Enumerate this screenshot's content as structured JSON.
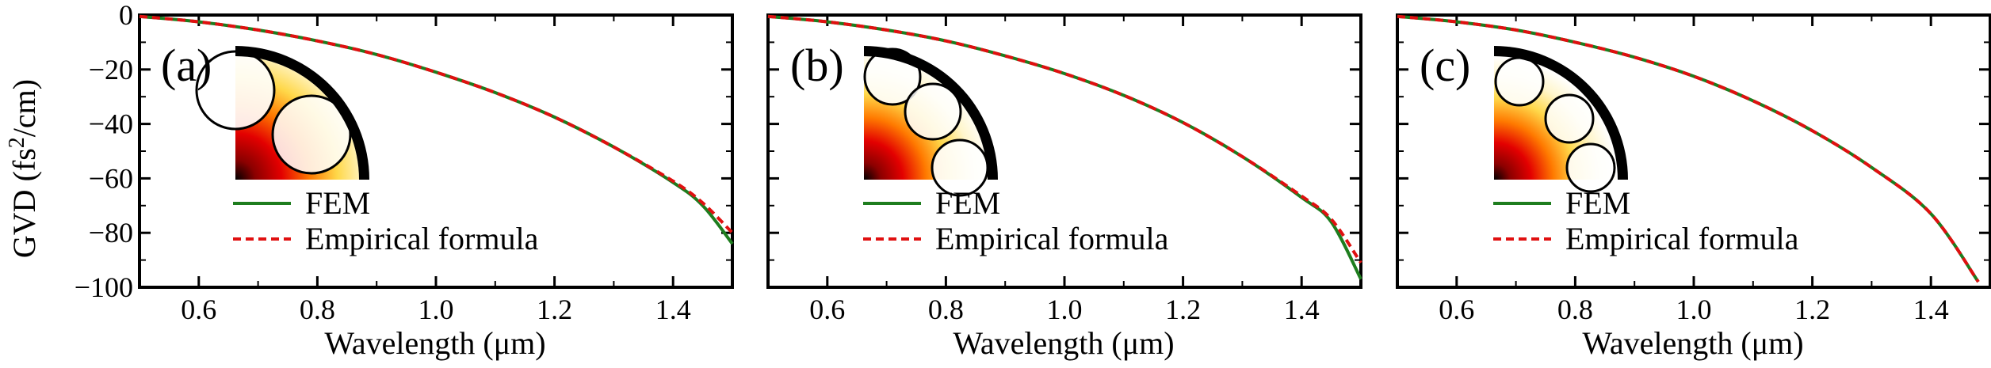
{
  "figure": {
    "ylabel_main": "GVD (fs",
    "ylabel_sup": "2",
    "ylabel_tail": "/cm)",
    "xlabel": "Wavelength (μm)"
  },
  "colors": {
    "fem": "#1e7d1e",
    "empirical": "#e01010",
    "frame": "#000000"
  },
  "chart_data": [
    {
      "type": "line",
      "panel_label": "(a)",
      "xlim": [
        0.5,
        1.5
      ],
      "ylim": [
        -100,
        0
      ],
      "xticks": [
        0.6,
        0.8,
        1.0,
        1.2,
        1.4
      ],
      "xtick_labels": [
        "0.6",
        "0.8",
        "1.0",
        "1.2",
        "1.4"
      ],
      "yticks": [
        0,
        -20,
        -40,
        -60,
        -80,
        -100
      ],
      "ytick_labels": [
        "0",
        "−20",
        "−40",
        "−60",
        "−80",
        "−100"
      ],
      "legend": [
        "FEM",
        "Empirical formula"
      ],
      "x": [
        0.5,
        0.6,
        0.7,
        0.8,
        0.9,
        1.0,
        1.1,
        1.2,
        1.3,
        1.4,
        1.45,
        1.5
      ],
      "series": [
        {
          "name": "FEM",
          "style": "solid",
          "values": [
            -0.5,
            -2.5,
            -5.5,
            -9.5,
            -14.5,
            -21,
            -28.5,
            -37.5,
            -48.5,
            -61.5,
            -70,
            -84
          ]
        },
        {
          "name": "Empirical formula",
          "style": "dashed",
          "values": [
            -0.5,
            -2.5,
            -5.5,
            -9.5,
            -14.5,
            -21,
            -28.5,
            -37.5,
            -48.5,
            -61,
            -69,
            -80
          ]
        }
      ]
    },
    {
      "type": "line",
      "panel_label": "(b)",
      "xlim": [
        0.5,
        1.5
      ],
      "ylim": [
        -100,
        0
      ],
      "xticks": [
        0.6,
        0.8,
        1.0,
        1.2,
        1.4
      ],
      "xtick_labels": [
        "0.6",
        "0.8",
        "1.0",
        "1.2",
        "1.4"
      ],
      "yticks": [
        0,
        -20,
        -40,
        -60,
        -80,
        -100
      ],
      "ytick_labels": [],
      "legend": [
        "FEM",
        "Empirical formula"
      ],
      "x": [
        0.5,
        0.6,
        0.7,
        0.8,
        0.9,
        1.0,
        1.1,
        1.2,
        1.3,
        1.4,
        1.45,
        1.5
      ],
      "series": [
        {
          "name": "FEM",
          "style": "solid",
          "values": [
            -0.5,
            -2.5,
            -5.5,
            -9.5,
            -15,
            -21.5,
            -29.5,
            -39.5,
            -52,
            -67,
            -76,
            -97
          ]
        },
        {
          "name": "Empirical formula",
          "style": "dashed",
          "values": [
            -0.5,
            -2.5,
            -5.5,
            -9.5,
            -15,
            -21.5,
            -29.5,
            -39.5,
            -52,
            -66.5,
            -75,
            -91
          ]
        }
      ]
    },
    {
      "type": "line",
      "panel_label": "(c)",
      "xlim": [
        0.5,
        1.5
      ],
      "ylim": [
        -100,
        0
      ],
      "xticks": [
        0.6,
        0.8,
        1.0,
        1.2,
        1.4
      ],
      "xtick_labels": [
        "0.6",
        "0.8",
        "1.0",
        "1.2",
        "1.4"
      ],
      "yticks": [
        0,
        -20,
        -40,
        -60,
        -80,
        -100
      ],
      "ytick_labels": [],
      "legend": [
        "FEM",
        "Empirical formula"
      ],
      "x": [
        0.5,
        0.6,
        0.7,
        0.8,
        0.9,
        1.0,
        1.1,
        1.2,
        1.3,
        1.4,
        1.48
      ],
      "series": [
        {
          "name": "FEM",
          "style": "solid",
          "values": [
            -0.5,
            -2.5,
            -5.5,
            -10,
            -15.5,
            -22.5,
            -31.5,
            -42.5,
            -56,
            -73,
            -98
          ]
        },
        {
          "name": "Empirical formula",
          "style": "dashed",
          "values": [
            -0.5,
            -2.5,
            -5.5,
            -10,
            -15.5,
            -22.5,
            -31.5,
            -42.5,
            -56,
            -73,
            -98
          ]
        }
      ]
    }
  ]
}
